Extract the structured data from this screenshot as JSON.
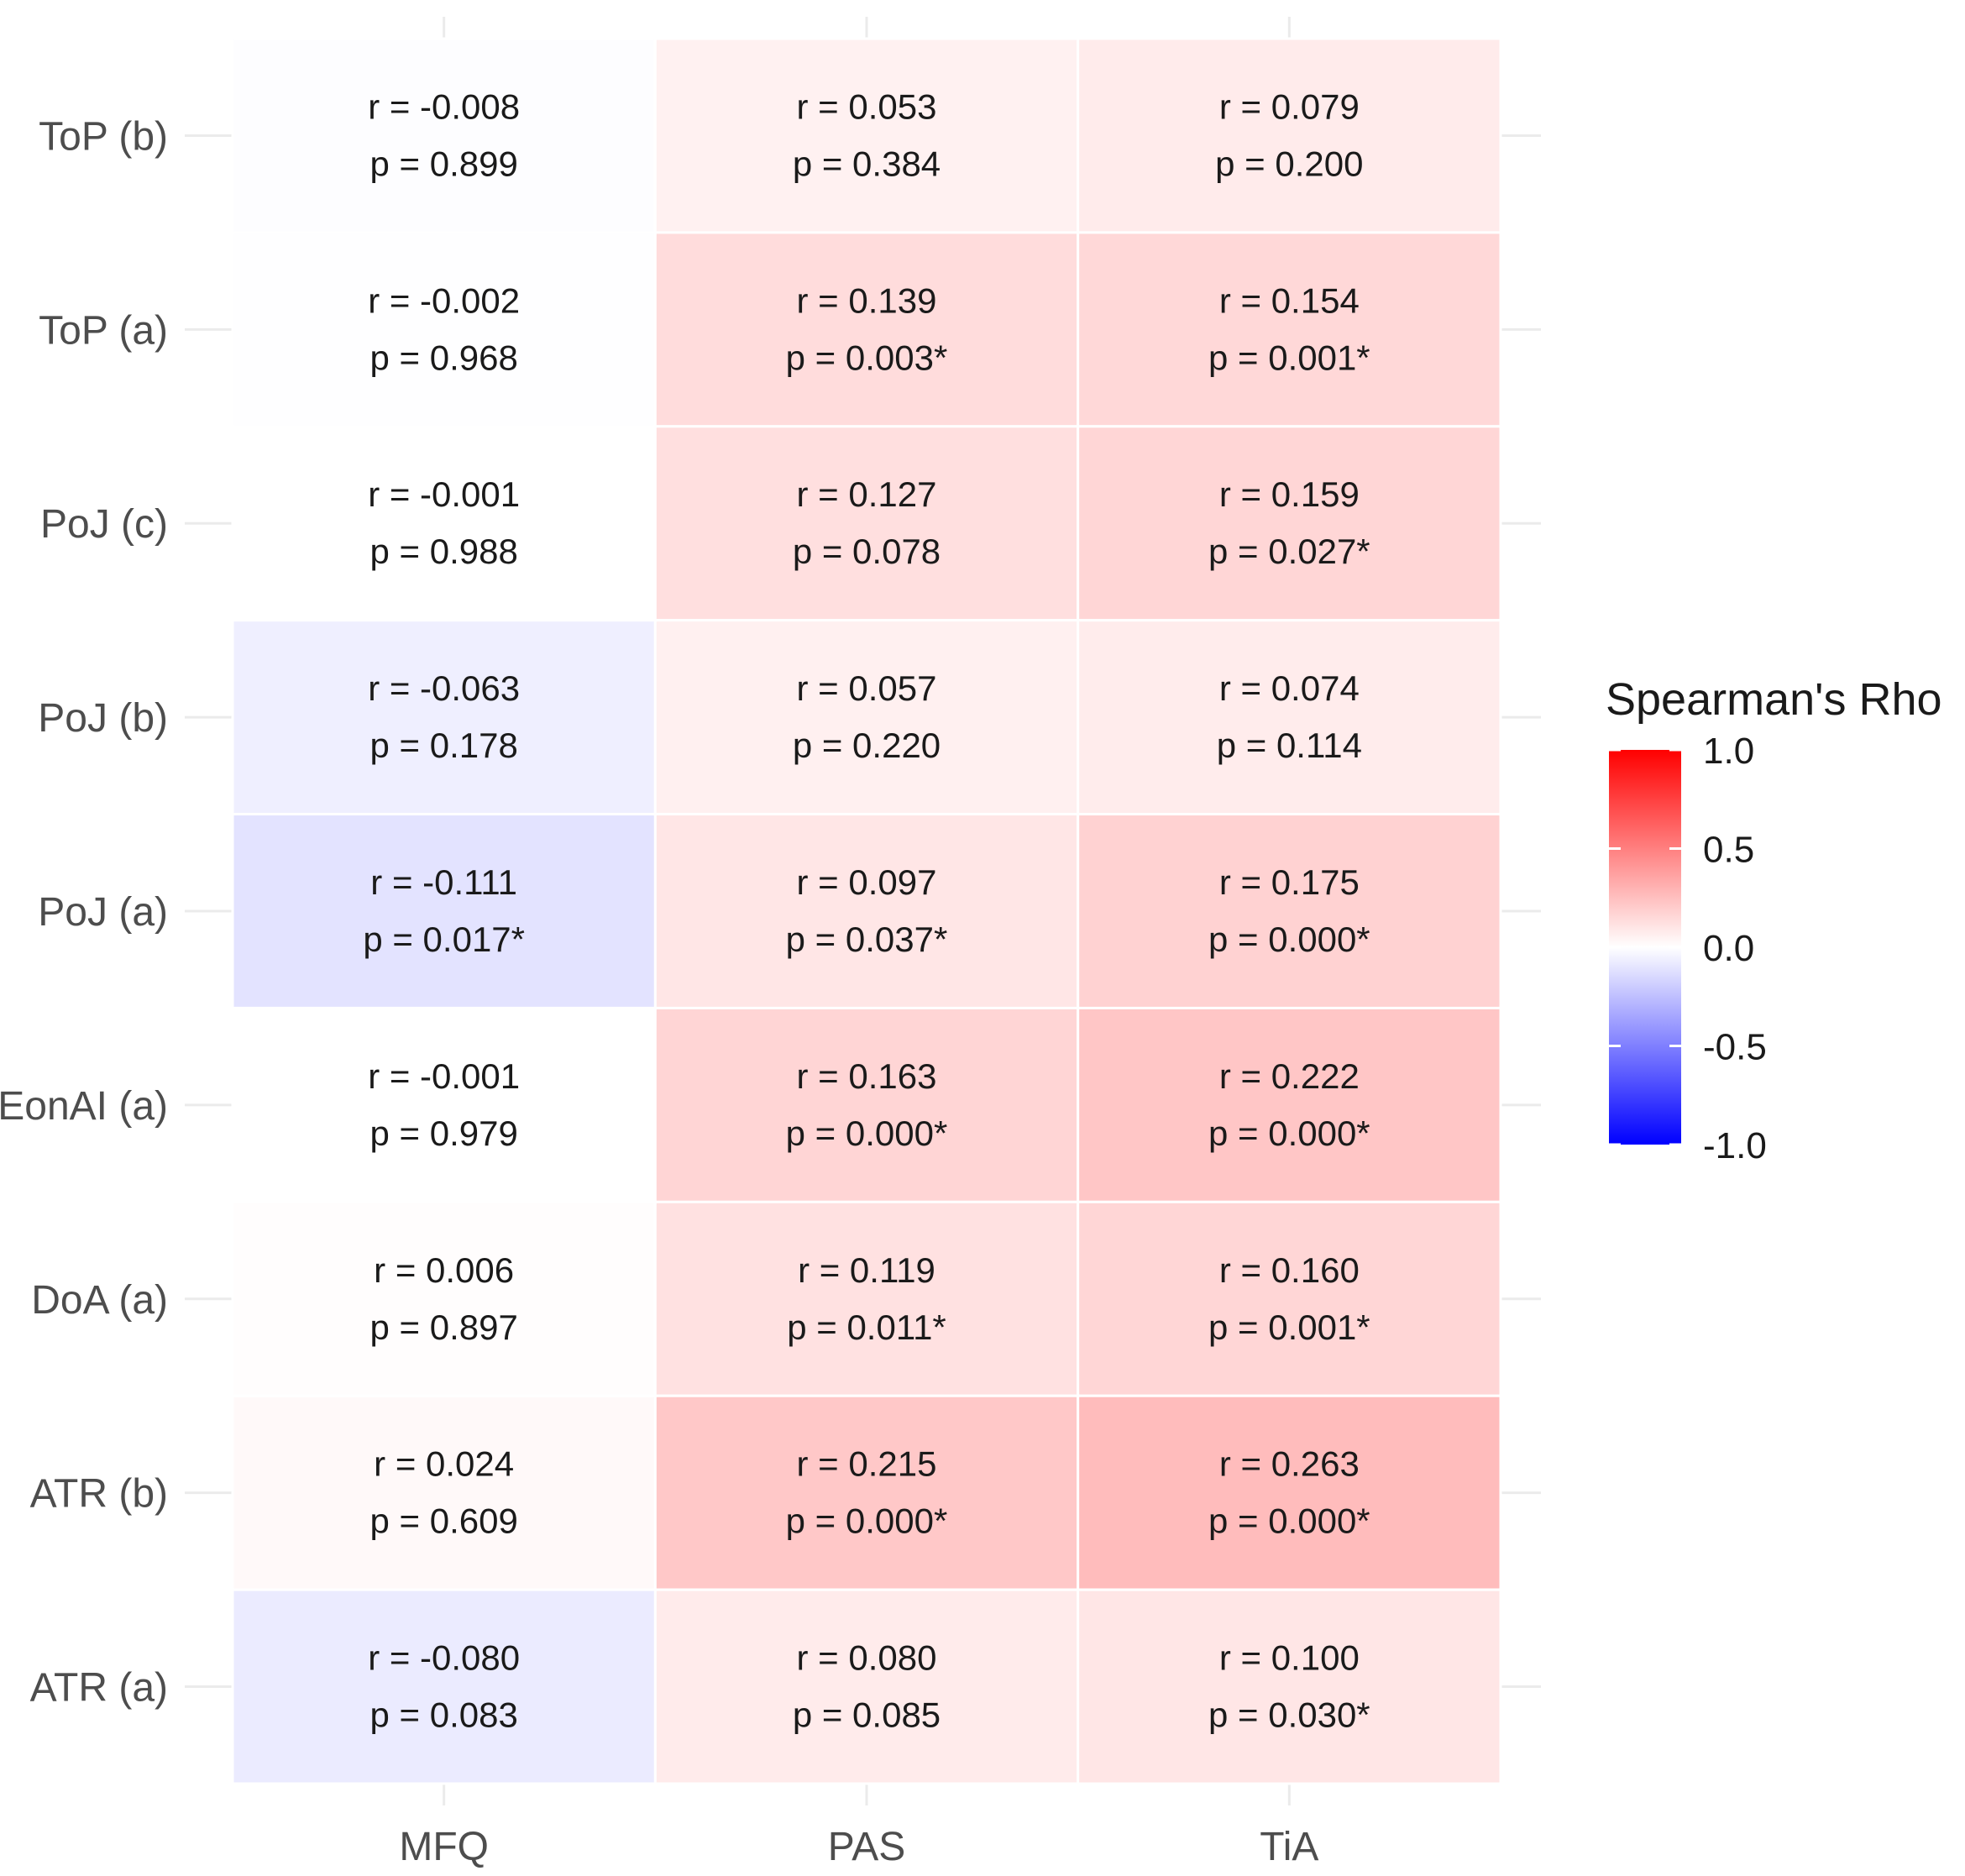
{
  "chart_data": {
    "type": "heatmap",
    "title": "",
    "xlabel": "",
    "ylabel": "",
    "columns": [
      "MFQ",
      "PAS",
      "TiA"
    ],
    "rows": [
      "ToP (b)",
      "ToP (a)",
      "PoJ (c)",
      "PoJ (b)",
      "PoJ (a)",
      "EonAI (a)",
      "DoA (a)",
      "ATR (b)",
      "ATR (a)"
    ],
    "r_values": [
      [
        -0.008,
        0.053,
        0.079
      ],
      [
        -0.002,
        0.139,
        0.154
      ],
      [
        -0.001,
        0.127,
        0.159
      ],
      [
        -0.063,
        0.057,
        0.074
      ],
      [
        -0.111,
        0.097,
        0.175
      ],
      [
        -0.001,
        0.163,
        0.222
      ],
      [
        0.006,
        0.119,
        0.16
      ],
      [
        0.024,
        0.215,
        0.263
      ],
      [
        -0.08,
        0.08,
        0.1
      ]
    ],
    "r_labels": [
      [
        "r = -0.008",
        "r = 0.053",
        "r = 0.079"
      ],
      [
        "r = -0.002",
        "r = 0.139",
        "r = 0.154"
      ],
      [
        "r = -0.001",
        "r = 0.127",
        "r = 0.159"
      ],
      [
        "r = -0.063",
        "r = 0.057",
        "r = 0.074"
      ],
      [
        "r = -0.111",
        "r = 0.097",
        "r = 0.175"
      ],
      [
        "r = -0.001",
        "r = 0.163",
        "r = 0.222"
      ],
      [
        "r = 0.006",
        "r = 0.119",
        "r = 0.160"
      ],
      [
        "r = 0.024",
        "r = 0.215",
        "r = 0.263"
      ],
      [
        "r = -0.080",
        "r = 0.080",
        "r = 0.100"
      ]
    ],
    "p_labels": [
      [
        "p = 0.899",
        "p = 0.384",
        "p = 0.200"
      ],
      [
        "p = 0.968",
        "p = 0.003*",
        "p = 0.001*"
      ],
      [
        "p = 0.988",
        "p = 0.078",
        "p = 0.027*"
      ],
      [
        "p = 0.178",
        "p = 0.220",
        "p = 0.114"
      ],
      [
        "p = 0.017*",
        "p = 0.037*",
        "p = 0.000*"
      ],
      [
        "p = 0.979",
        "p = 0.000*",
        "p = 0.000*"
      ],
      [
        "p = 0.897",
        "p = 0.011*",
        "p = 0.001*"
      ],
      [
        "p = 0.609",
        "p = 0.000*",
        "p = 0.000*"
      ],
      [
        "p = 0.083",
        "p = 0.085",
        "p = 0.030*"
      ]
    ],
    "legend": {
      "title": "Spearman's Rho",
      "placement": "right",
      "range": [
        -1.0,
        1.0
      ],
      "ticks": [
        1.0,
        0.5,
        0.0,
        -0.5,
        -1.0
      ],
      "tick_labels": [
        "1.0",
        "0.5",
        "0.0",
        "-0.5",
        "-1.0"
      ],
      "colors": {
        "low": "#0000ff",
        "mid": "#ffffff",
        "high": "#ff0000"
      }
    },
    "grid": true
  }
}
